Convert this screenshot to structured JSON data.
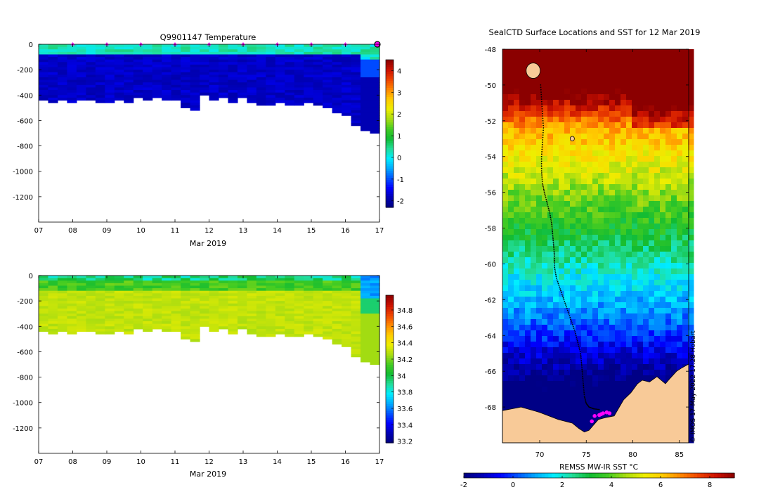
{
  "colors": {
    "jet": [
      "#00007f",
      "#0000b3",
      "#0000ff",
      "#0055ff",
      "#00aaff",
      "#00eeff",
      "#22dd99",
      "#11bb33",
      "#44cc22",
      "#aadd11",
      "#eeee00",
      "#ffcc00",
      "#ff8800",
      "#ee4400",
      "#cc1100",
      "#8b0000"
    ],
    "land": "#f8ca98",
    "marker": "#ff00ff",
    "track": "#000000"
  },
  "chart_data": [
    {
      "id": "temperature-section",
      "type": "heatmap",
      "title": "Q9901147  Temperature",
      "xlabel": "Mar 2019",
      "ylabel": "",
      "xlim": [
        7,
        17
      ],
      "ylim": [
        -1400,
        0
      ],
      "x_ticks": [
        "07",
        "08",
        "09",
        "10",
        "11",
        "12",
        "13",
        "14",
        "15",
        "16",
        "17"
      ],
      "y_ticks": [
        "0",
        "-200",
        "-400",
        "-600",
        "-800",
        "-1000",
        "-1200"
      ],
      "colorbar": {
        "min": -2.3,
        "max": 4.5,
        "ticks": [
          "-2",
          "-1",
          "0",
          "1",
          "2",
          "3",
          "4"
        ]
      },
      "profile_bottom_depths": [
        -440,
        -450,
        -440,
        -445,
        -435,
        -440,
        -450,
        -445,
        -430,
        -445,
        -420,
        -440,
        -415,
        -425,
        -440,
        -500,
        -510,
        -400,
        -430,
        -410,
        -445,
        -420,
        -455,
        -470,
        -480,
        -460,
        -475,
        -470,
        -460,
        -470,
        -500,
        -530,
        -560,
        -640,
        -680,
        -690
      ],
      "mixed_layer_depth": -80,
      "surface_temp": 0.3,
      "deep_temp": -1.9,
      "profile_markers": [
        8,
        9,
        10,
        11,
        12,
        13,
        14,
        15,
        16,
        17
      ]
    },
    {
      "id": "salinity-section",
      "type": "heatmap",
      "title": "",
      "xlabel": "Mar 2019",
      "ylabel": "",
      "xlim": [
        7,
        17
      ],
      "ylim": [
        -1400,
        0
      ],
      "x_ticks": [
        "07",
        "08",
        "09",
        "10",
        "11",
        "12",
        "13",
        "14",
        "15",
        "16",
        "17"
      ],
      "y_ticks": [
        "0",
        "-200",
        "-400",
        "-600",
        "-800",
        "-1000",
        "-1200"
      ],
      "colorbar": {
        "min": 33.18,
        "max": 34.98,
        "ticks": [
          "33.2",
          "33.4",
          "33.6",
          "33.8",
          "34",
          "34.2",
          "34.4",
          "34.6",
          "34.8"
        ]
      },
      "profile_bottom_depths": [
        -440,
        -450,
        -440,
        -445,
        -435,
        -440,
        -450,
        -445,
        -430,
        -445,
        -420,
        -440,
        -415,
        -425,
        -440,
        -500,
        -510,
        -400,
        -430,
        -410,
        -445,
        -420,
        -455,
        -470,
        -480,
        -460,
        -475,
        -470,
        -460,
        -470,
        -500,
        -530,
        -560,
        -640,
        -680,
        -690
      ],
      "surface_salinity": 33.85,
      "deep_salinity": 34.32
    },
    {
      "id": "sst-map",
      "type": "heatmap",
      "title": "SealCTD Surface Locations and SST for 12 Mar 2019",
      "xlabel": "",
      "xlim": [
        66,
        86
      ],
      "ylim": [
        -70,
        -48
      ],
      "x_ticks": [
        "70",
        "75",
        "80",
        "85"
      ],
      "y_ticks": [
        "-48",
        "-50",
        "-52",
        "-54",
        "-56",
        "-58",
        "-60",
        "-62",
        "-64",
        "-66",
        "-68"
      ],
      "colorbar": {
        "label": "REMSS MW-IR SST °C",
        "min": -2,
        "max": 9,
        "ticks": [
          "-2",
          "0",
          "2",
          "4",
          "6",
          "8"
        ]
      },
      "side_note": "© IMOS 17-May-2022 17:28 Hobart",
      "track_lon": [
        70.1,
        70.2,
        70.3,
        70.4,
        70.3,
        70.2,
        70.2,
        70.3,
        70.5,
        70.8,
        71.1,
        71.3,
        71.4,
        71.5,
        71.6,
        71.6,
        71.8,
        72.2,
        72.6,
        73.0,
        73.4,
        73.8,
        74.1,
        74.4,
        74.5,
        74.6,
        74.7,
        74.8,
        75.0,
        75.3,
        75.8,
        76.5
      ],
      "track_lat": [
        -50.0,
        -50.8,
        -51.6,
        -52.4,
        -53.2,
        -54.0,
        -54.8,
        -55.5,
        -56.0,
        -56.6,
        -57.2,
        -57.8,
        -58.4,
        -59.0,
        -59.6,
        -60.2,
        -60.8,
        -61.4,
        -62.0,
        -62.6,
        -63.2,
        -63.8,
        -64.4,
        -65.0,
        -65.6,
        -66.2,
        -66.8,
        -67.4,
        -67.8,
        -68.0,
        -68.1,
        -68.15
      ],
      "mag_points": [
        [
          75.9,
          -68.5
        ],
        [
          76.4,
          -68.45
        ],
        [
          76.8,
          -68.35
        ],
        [
          76.6,
          -68.4
        ],
        [
          77.2,
          -68.3
        ],
        [
          77.5,
          -68.35
        ],
        [
          75.6,
          -68.8
        ]
      ],
      "islands": [
        [
          69.3,
          -49.2
        ],
        [
          73.5,
          -53.0
        ]
      ]
    }
  ]
}
